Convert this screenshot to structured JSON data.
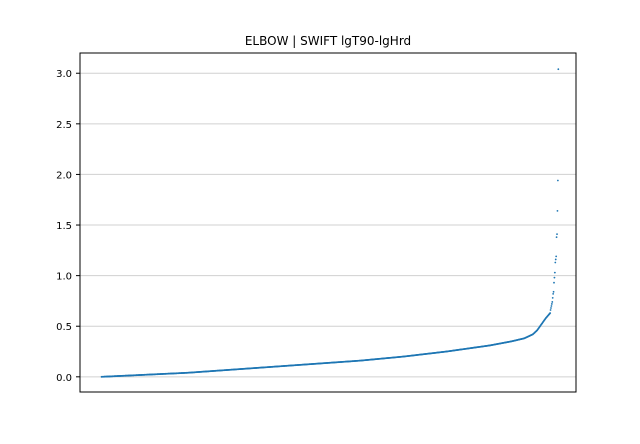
{
  "chart_data": {
    "type": "scatter",
    "title": "ELBOW | SWIFT lgT90-lgHrd",
    "xlabel": "",
    "ylabel": "",
    "ylim": [
      -0.15,
      3.2
    ],
    "yticks": [
      0.0,
      0.5,
      1.0,
      1.5,
      2.0,
      2.5,
      3.0
    ],
    "ytick_labels": [
      "0.0",
      "0.5",
      "1.0",
      "1.5",
      "2.0",
      "2.5",
      "3.0"
    ],
    "x_ticks_visible": false,
    "grid": "horizontal",
    "legend": "none",
    "n_points": 1200,
    "series": [
      {
        "x": [
          0,
          50,
          100,
          200,
          300,
          400,
          500,
          600,
          700,
          800,
          850,
          900,
          950,
          980,
          1000,
          1010,
          1020,
          1030,
          1040
        ],
        "y": [
          0.0,
          0.01,
          0.02,
          0.04,
          0.07,
          0.1,
          0.13,
          0.16,
          0.2,
          0.25,
          0.28,
          0.31,
          0.35,
          0.38,
          0.42,
          0.46,
          0.52,
          0.58,
          0.63
        ]
      }
    ],
    "outliers": [
      {
        "x": 1041,
        "y": 0.66
      },
      {
        "x": 1042,
        "y": 0.68
      },
      {
        "x": 1043,
        "y": 0.7
      },
      {
        "x": 1044,
        "y": 0.72
      },
      {
        "x": 1045,
        "y": 0.74
      },
      {
        "x": 1046,
        "y": 0.78
      },
      {
        "x": 1047,
        "y": 0.82
      },
      {
        "x": 1048,
        "y": 0.84
      },
      {
        "x": 1049,
        "y": 0.93
      },
      {
        "x": 1050,
        "y": 0.98
      },
      {
        "x": 1051,
        "y": 1.03
      },
      {
        "x": 1052,
        "y": 1.13
      },
      {
        "x": 1053,
        "y": 1.16
      },
      {
        "x": 1054,
        "y": 1.19
      },
      {
        "x": 1055,
        "y": 1.38
      },
      {
        "x": 1056,
        "y": 1.41
      },
      {
        "x": 1057,
        "y": 1.64
      },
      {
        "x": 1058,
        "y": 1.94
      },
      {
        "x": 1059,
        "y": 3.04
      }
    ],
    "xlim": [
      -50,
      1100
    ],
    "colors": {
      "points": "#1f77b4",
      "grid": "#d0d0d0",
      "axis": "#000000"
    }
  }
}
